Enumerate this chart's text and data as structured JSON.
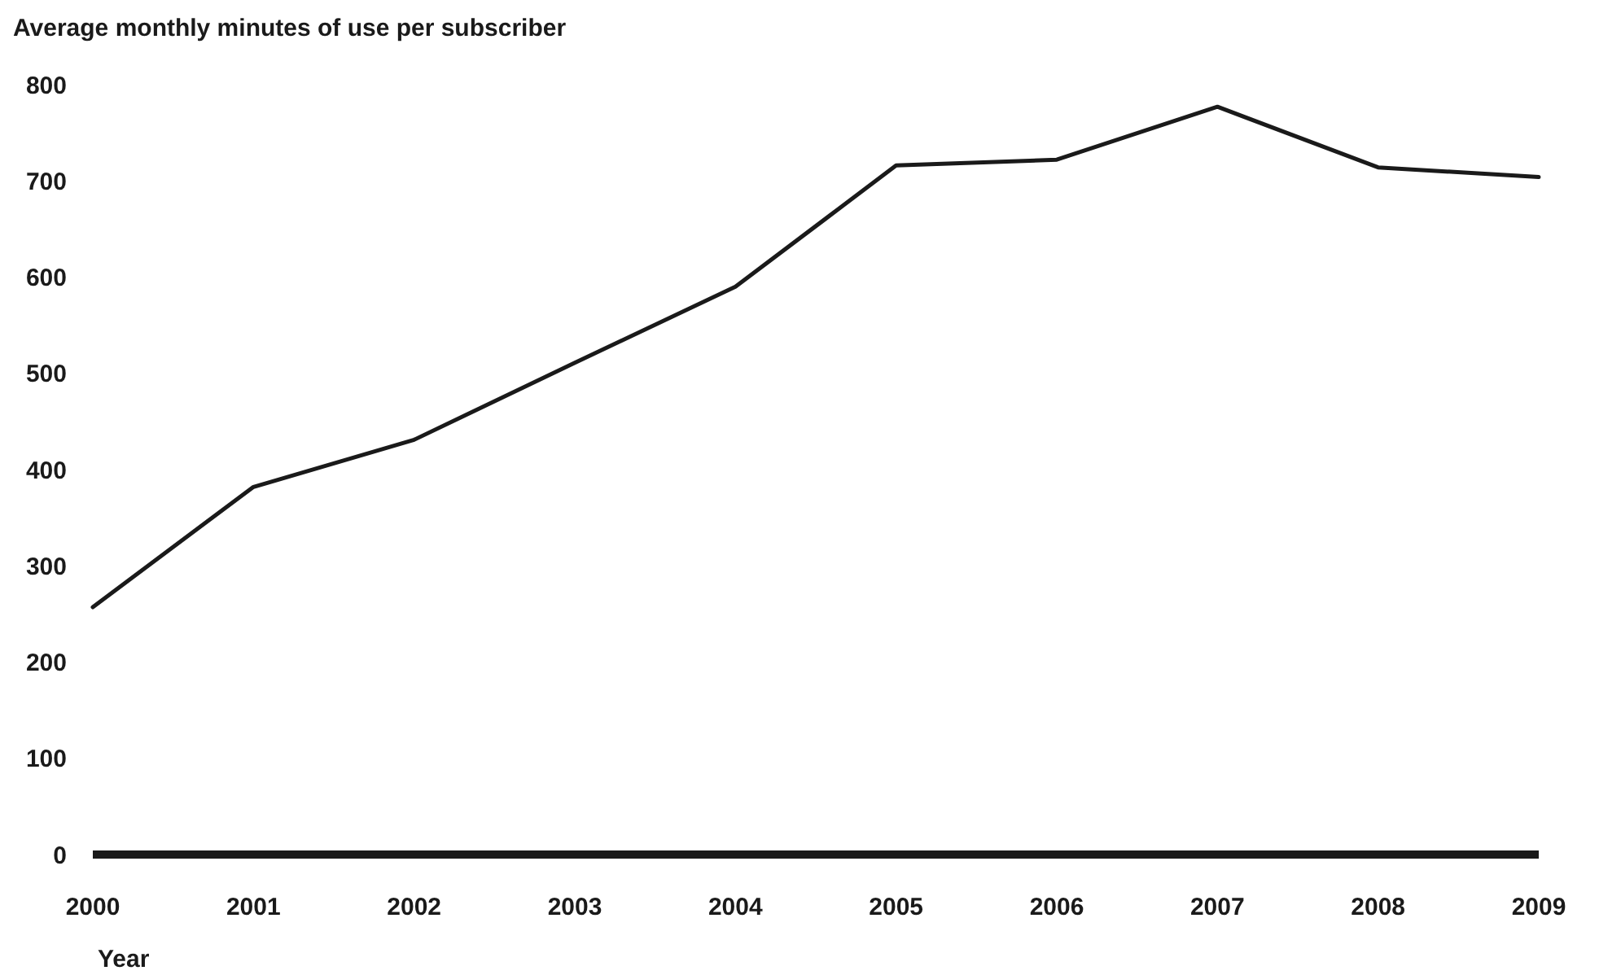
{
  "chart_data": {
    "type": "line",
    "title": "Average monthly minutes of use per subscriber",
    "xlabel": "Year",
    "categories": [
      "2000",
      "2001",
      "2002",
      "2003",
      "2004",
      "2005",
      "2006",
      "2007",
      "2008",
      "2009"
    ],
    "series": [
      {
        "color": "#1a1a1a",
        "values": [
          257,
          382,
          431,
          511,
          590,
          716,
          722,
          777,
          714,
          704
        ]
      }
    ],
    "ylim": [
      0,
      800
    ],
    "yticks": [
      0,
      100,
      200,
      300,
      400,
      500,
      600,
      700,
      800
    ],
    "grid": false,
    "marker": "none",
    "line_style": "solid"
  }
}
